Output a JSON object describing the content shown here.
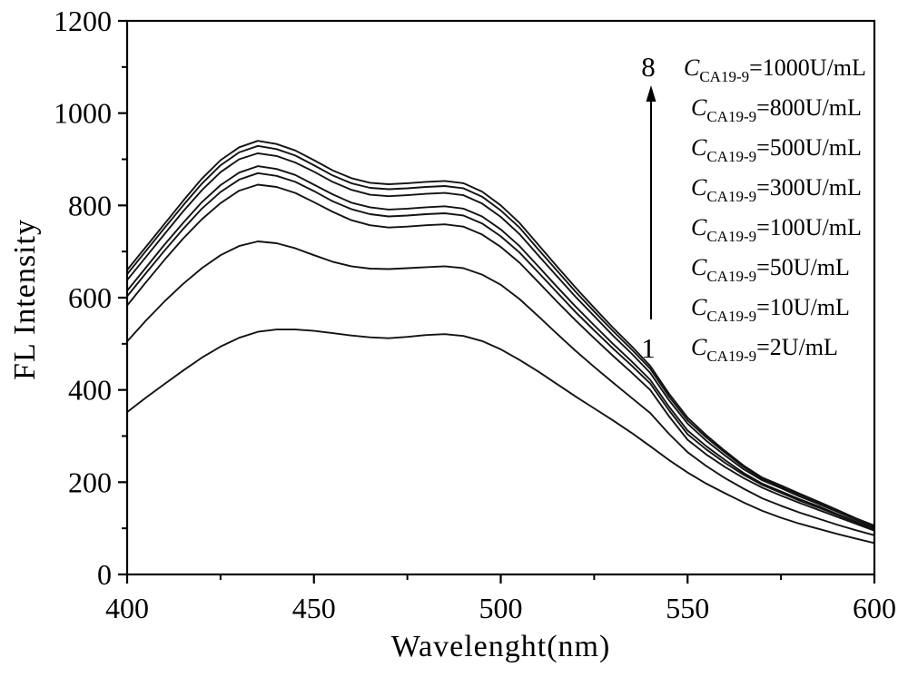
{
  "figure": {
    "background": "#ffffff",
    "axis_color": "#000000",
    "curve_color": "#131313"
  },
  "chart_data": {
    "type": "line",
    "title": "",
    "xlabel": "Wavelenght(nm)",
    "ylabel": "FL Intensity",
    "xlim": [
      400,
      600
    ],
    "ylim": [
      0,
      1200
    ],
    "grid": false,
    "legend_position": "upper right (text annotations, no symbols)",
    "x_major_ticks": [
      400,
      450,
      500,
      550,
      600
    ],
    "x_minor_ticks": [
      425,
      475,
      525,
      575
    ],
    "y_major_ticks": [
      0,
      200,
      400,
      600,
      800,
      1000,
      1200
    ],
    "y_minor_ticks": [
      100,
      300,
      500,
      700,
      900,
      1100
    ],
    "x": [
      400,
      405,
      410,
      415,
      420,
      425,
      430,
      435,
      440,
      445,
      450,
      455,
      460,
      465,
      470,
      475,
      480,
      485,
      490,
      495,
      500,
      505,
      510,
      515,
      520,
      525,
      530,
      535,
      540,
      545,
      550,
      555,
      560,
      565,
      570,
      575,
      580,
      585,
      590,
      595,
      600
    ],
    "series": [
      {
        "curve_number": 1,
        "name": "C_CA19-9=2U/mL",
        "concentration": "2U/mL",
        "values": [
          352,
          383,
          413,
          442,
          470,
          494,
          513,
          526,
          531,
          531,
          528,
          523,
          518,
          514,
          512,
          515,
          519,
          521,
          517,
          506,
          488,
          465,
          440,
          413,
          386,
          360,
          334,
          307,
          278,
          248,
          221,
          197,
          176,
          156,
          138,
          123,
          110,
          99,
          88,
          78,
          68
        ]
      },
      {
        "curve_number": 2,
        "name": "C_CA19-9=10U/mL",
        "concentration": "10U/mL",
        "values": [
          505,
          550,
          592,
          630,
          664,
          692,
          712,
          722,
          718,
          707,
          692,
          678,
          668,
          663,
          662,
          664,
          666,
          668,
          664,
          650,
          628,
          597,
          560,
          522,
          485,
          450,
          416,
          383,
          350,
          305,
          265,
          235,
          209,
          186,
          165,
          149,
          134,
          121,
          108,
          96,
          85
        ]
      },
      {
        "curve_number": 3,
        "name": "C_CA19-9=50U/mL",
        "concentration": "50U/mL",
        "values": [
          583,
          633,
          682,
          728,
          770,
          805,
          832,
          845,
          840,
          827,
          807,
          786,
          768,
          757,
          752,
          754,
          757,
          759,
          754,
          737,
          710,
          676,
          634,
          592,
          551,
          512,
          474,
          438,
          400,
          343,
          292,
          260,
          233,
          209,
          188,
          171,
          155,
          140,
          125,
          110,
          95
        ]
      },
      {
        "curve_number": 4,
        "name": "C_CA19-9=100U/mL",
        "concentration": "100U/mL",
        "values": [
          603,
          653,
          702,
          749,
          793,
          829,
          856,
          870,
          864,
          851,
          831,
          809,
          792,
          781,
          776,
          778,
          781,
          783,
          778,
          761,
          733,
          698,
          655,
          612,
          569,
          529,
          490,
          453,
          414,
          356,
          304,
          271,
          242,
          216,
          194,
          177,
          160,
          145,
          129,
          113,
          98
        ]
      },
      {
        "curve_number": 5,
        "name": "C_CA19-9=300U/mL",
        "concentration": "300U/mL",
        "values": [
          615,
          665,
          715,
          762,
          807,
          844,
          871,
          885,
          879,
          866,
          845,
          824,
          806,
          796,
          791,
          793,
          796,
          798,
          793,
          776,
          748,
          712,
          668,
          624,
          581,
          540,
          500,
          462,
          422,
          364,
          312,
          278,
          248,
          220,
          197,
          180,
          163,
          148,
          131,
          115,
          100
        ]
      },
      {
        "curve_number": 6,
        "name": "C_CA19-9=500U/mL",
        "concentration": "500U/mL",
        "values": [
          638,
          688,
          738,
          787,
          833,
          872,
          900,
          913,
          907,
          893,
          873,
          851,
          834,
          823,
          820,
          822,
          825,
          827,
          822,
          804,
          775,
          738,
          692,
          647,
          602,
          560,
          518,
          479,
          437,
          378,
          327,
          290,
          258,
          228,
          204,
          187,
          169,
          153,
          136,
          119,
          103
        ]
      },
      {
        "curve_number": 7,
        "name": "C_CA19-9=800U/mL",
        "concentration": "800U/mL",
        "values": [
          651,
          701,
          751,
          800,
          847,
          887,
          915,
          929,
          922,
          908,
          887,
          865,
          848,
          838,
          835,
          837,
          840,
          842,
          837,
          819,
          789,
          752,
          705,
          659,
          613,
          570,
          528,
          488,
          446,
          386,
          334,
          297,
          264,
          233,
          207,
          190,
          173,
          156,
          138,
          121,
          105
        ]
      },
      {
        "curve_number": 8,
        "name": "C_CA19-9=1000U/mL",
        "concentration": "1000U/mL",
        "values": [
          660,
          710,
          760,
          810,
          858,
          898,
          926,
          940,
          933,
          919,
          898,
          876,
          859,
          849,
          846,
          848,
          851,
          853,
          848,
          830,
          800,
          762,
          715,
          668,
          622,
          578,
          535,
          495,
          452,
          392,
          340,
          302,
          268,
          236,
          210,
          193,
          175,
          158,
          140,
          122,
          106
        ]
      }
    ],
    "annotation": {
      "arrow_top_label": "8",
      "arrow_bottom_label": "1",
      "arrow_direction": "up"
    }
  },
  "axis_labels": {
    "x": "Wavelenght(nm)",
    "y": "FL Intensity"
  },
  "legend": {
    "entries": [
      {
        "symbol": "C",
        "subscript": "CA19-9",
        "value": "=1000U/mL"
      },
      {
        "symbol": "C",
        "subscript": "CA19-9",
        "value": "=800U/mL"
      },
      {
        "symbol": "C",
        "subscript": "CA19-9",
        "value": "=500U/mL"
      },
      {
        "symbol": "C",
        "subscript": "CA19-9",
        "value": "=300U/mL"
      },
      {
        "symbol": "C",
        "subscript": "CA19-9",
        "value": "=100U/mL"
      },
      {
        "symbol": "C",
        "subscript": "CA19-9",
        "value": "=50U/mL"
      },
      {
        "symbol": "C",
        "subscript": "CA19-9",
        "value": "=10U/mL"
      },
      {
        "symbol": "C",
        "subscript": "CA19-9",
        "value": "=2U/mL"
      }
    ]
  }
}
